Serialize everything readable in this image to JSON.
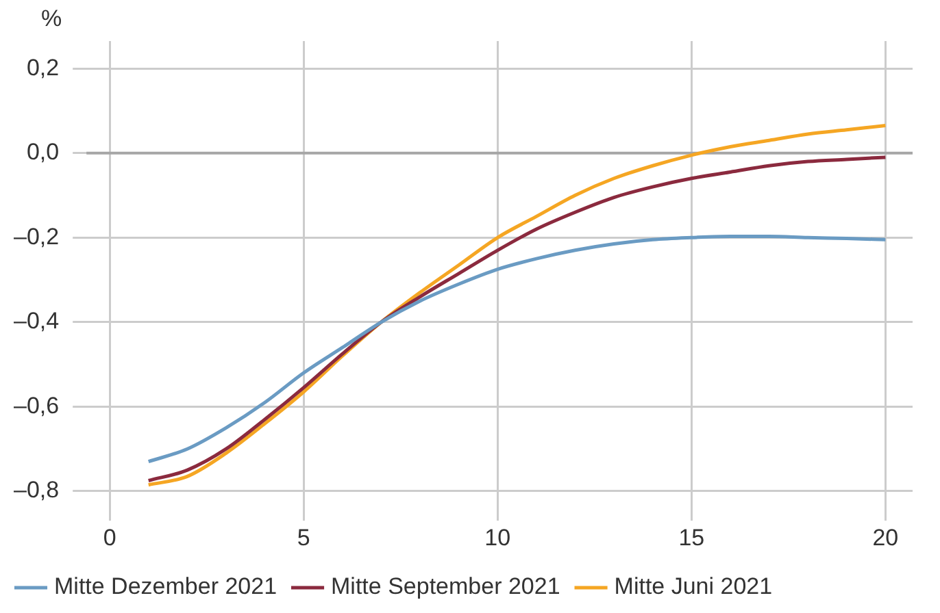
{
  "chart_data": {
    "type": "line",
    "ylabel": "%",
    "x": [
      1,
      2,
      3,
      4,
      5,
      6,
      7,
      8,
      9,
      10,
      11,
      12,
      13,
      14,
      15,
      16,
      17,
      18,
      19,
      20
    ],
    "series": [
      {
        "name": "Mitte Dezember 2021",
        "color": "#6a9bc3",
        "values": [
          -0.73,
          -0.7,
          -0.65,
          -0.59,
          -0.52,
          -0.46,
          -0.4,
          -0.35,
          -0.31,
          -0.275,
          -0.25,
          -0.23,
          -0.215,
          -0.205,
          -0.2,
          -0.197,
          -0.197,
          -0.2,
          -0.202,
          -0.205
        ]
      },
      {
        "name": "Mitte September 2021",
        "color": "#8b2a3e",
        "values": [
          -0.775,
          -0.75,
          -0.7,
          -0.63,
          -0.555,
          -0.475,
          -0.4,
          -0.34,
          -0.285,
          -0.23,
          -0.18,
          -0.14,
          -0.105,
          -0.08,
          -0.06,
          -0.045,
          -0.03,
          -0.02,
          -0.015,
          -0.01
        ]
      },
      {
        "name": "Mitte Juni 2021",
        "color": "#f5a623",
        "values": [
          -0.785,
          -0.765,
          -0.71,
          -0.64,
          -0.565,
          -0.48,
          -0.4,
          -0.33,
          -0.265,
          -0.2,
          -0.15,
          -0.1,
          -0.06,
          -0.03,
          -0.005,
          0.015,
          0.03,
          0.045,
          0.055,
          0.065
        ]
      }
    ],
    "xlim": [
      -0.6,
      20.7
    ],
    "xticks": [
      0,
      5,
      10,
      15,
      20
    ],
    "ylim": [
      -0.87,
      0.265
    ],
    "yticks": [
      {
        "value": 0.2,
        "label": "0,2"
      },
      {
        "value": 0,
        "label": "0,0"
      },
      {
        "value": -0.2,
        "label": "–0,2"
      },
      {
        "value": -0.4,
        "label": "–0,4"
      },
      {
        "value": -0.6,
        "label": "–0,6"
      },
      {
        "value": -0.8,
        "label": "–0,8"
      }
    ],
    "ref_lines": [
      {
        "axis": "y",
        "value": 0,
        "color": "#a6a6a6"
      }
    ],
    "grid": true,
    "legend": "bottom",
    "marker": "none",
    "line_style": "solid"
  }
}
